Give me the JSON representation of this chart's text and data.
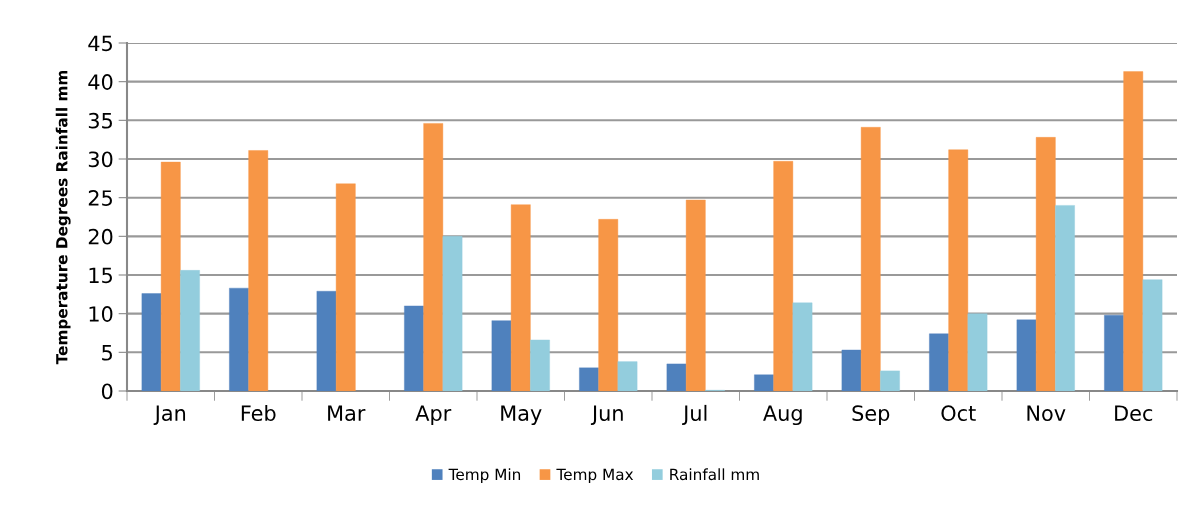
{
  "chart_data": {
    "type": "bar",
    "ylabel": "Temperature Degrees Rainfall mm",
    "categories": [
      "Jan",
      "Feb",
      "Mar",
      "Apr",
      "May",
      "Jun",
      "Jul",
      "Aug",
      "Sep",
      "Oct",
      "Nov",
      "Dec"
    ],
    "series": [
      {
        "name": "Temp Min",
        "color": "#4f81bd",
        "values": [
          12.6,
          13.3,
          12.9,
          11.0,
          9.1,
          3.0,
          3.5,
          2.1,
          5.3,
          7.4,
          9.2,
          9.8
        ]
      },
      {
        "name": "Temp Max",
        "color": "#f79646",
        "values": [
          29.6,
          31.1,
          26.8,
          34.6,
          24.1,
          22.2,
          24.7,
          29.7,
          34.1,
          31.2,
          32.8,
          41.3
        ]
      },
      {
        "name": "Rainfall mm",
        "color": "#93cddd",
        "values": [
          15.6,
          null,
          null,
          20.0,
          6.6,
          3.8,
          0.1,
          11.4,
          2.6,
          10.0,
          24.0,
          14.4
        ]
      }
    ],
    "ylim": [
      0,
      45
    ],
    "yticks": [
      0,
      5,
      10,
      15,
      20,
      25,
      30,
      35,
      40,
      45
    ],
    "grid": "y",
    "legend": "bottom"
  }
}
